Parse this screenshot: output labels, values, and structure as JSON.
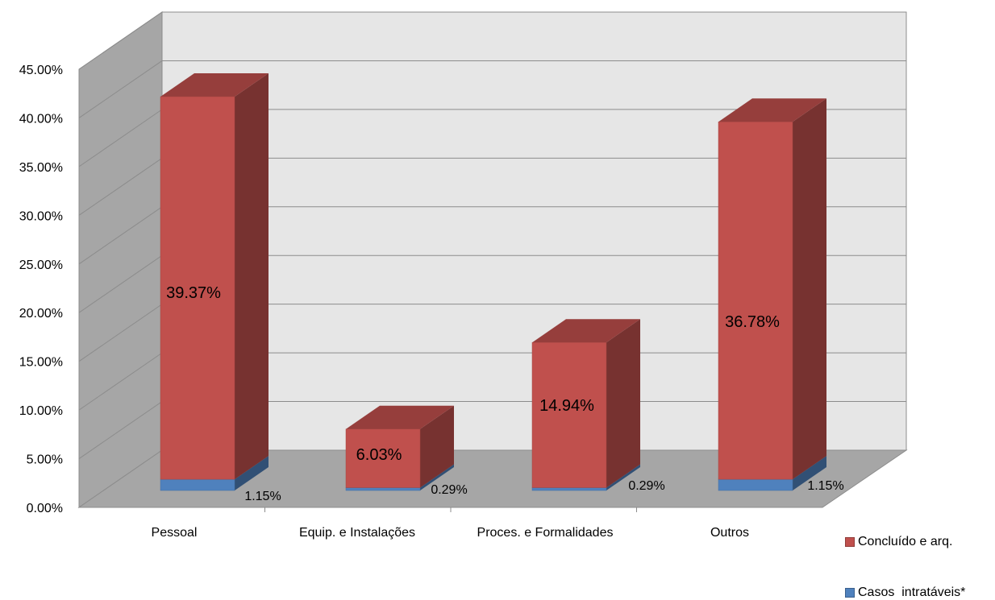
{
  "chart_data": {
    "type": "bar",
    "stacked": true,
    "three_d": true,
    "categories": [
      "Pessoal",
      "Equip. e Instalações",
      "Proces. e Formalidades",
      "Outros"
    ],
    "series": [
      {
        "name": "Casos  intratáveis*",
        "values": [
          1.15,
          0.29,
          0.29,
          1.15
        ],
        "color": "#4F81BD"
      },
      {
        "name": "Concluído e arq.",
        "values": [
          39.37,
          6.03,
          14.94,
          36.78
        ],
        "color": "#C0504D"
      }
    ],
    "data_labels": {
      "Casos  intratáveis*": [
        "1.15%",
        "0.29%",
        "0.29%",
        "1.15%"
      ],
      "Concluído e arq.": [
        "39.37%",
        "6.03%",
        "14.94%",
        "36.78%"
      ]
    },
    "y_ticks": [
      "0.00%",
      "5.00%",
      "10.00%",
      "15.00%",
      "20.00%",
      "25.00%",
      "30.00%",
      "35.00%",
      "40.00%",
      "45.00%"
    ],
    "ylim": [
      0,
      45
    ],
    "ytick_step": 5,
    "grid": true,
    "legend_position": "right",
    "title": "",
    "xlabel": "",
    "ylabel": ""
  }
}
